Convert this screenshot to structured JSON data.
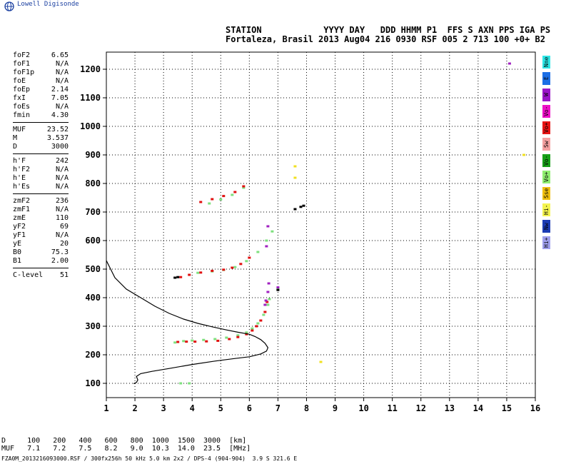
{
  "logo": {
    "text": "Lowell Digisonde",
    "icon": "globe-icon"
  },
  "header": {
    "line1": "STATION            YYYY DAY   DDD HHMM P1  FFS S AXN PPS IGA PS",
    "line2": "Fortaleza, Brasil 2013 Aug04 216 0930 RSF 005 2 713 100 +0+ B2"
  },
  "params": [
    {
      "label": "foF2",
      "value": "6.65"
    },
    {
      "label": "foF1",
      "value": "N/A"
    },
    {
      "label": "foF1p",
      "value": "N/A"
    },
    {
      "label": "foE",
      "value": "N/A"
    },
    {
      "label": "foEp",
      "value": "2.14"
    },
    {
      "label": "fxI",
      "value": "7.05"
    },
    {
      "label": "foEs",
      "value": "N/A"
    },
    {
      "label": "fmin",
      "value": "4.30"
    },
    {
      "sep": true
    },
    {
      "label": "MUF",
      "value": "23.52"
    },
    {
      "label": "M",
      "value": "3.537"
    },
    {
      "label": "D",
      "value": "3000"
    },
    {
      "sep": true
    },
    {
      "label": "h'F",
      "value": "242"
    },
    {
      "label": "h'F2",
      "value": "N/A"
    },
    {
      "label": "h'E",
      "value": "N/A"
    },
    {
      "label": "h'Es",
      "value": "N/A"
    },
    {
      "sep": true
    },
    {
      "label": "zmF2",
      "value": "236"
    },
    {
      "label": "zmF1",
      "value": "N/A"
    },
    {
      "label": "zmE",
      "value": "110"
    },
    {
      "label": "yF2",
      "value": "69"
    },
    {
      "label": "yF1",
      "value": "N/A"
    },
    {
      "label": "yE",
      "value": "20"
    },
    {
      "label": "B0",
      "value": "75.3"
    },
    {
      "label": "B1",
      "value": "2.00"
    },
    {
      "sep": true
    },
    {
      "label": "C-level",
      "value": "51"
    }
  ],
  "legend": [
    {
      "label": "Nne",
      "color": "#2ee6e6"
    },
    {
      "label": "E",
      "color": "#1c6ee6"
    },
    {
      "label": "W",
      "color": "#9a14c8"
    },
    {
      "label": "Vo-",
      "color": "#ee10c8"
    },
    {
      "label": "Vo+",
      "color": "#e81414"
    },
    {
      "label": "Sw",
      "color": "#f4a0a0"
    },
    {
      "label": "Vo-",
      "color": "#18a018"
    },
    {
      "label": "Vo+",
      "color": "#90ee70"
    },
    {
      "label": "Sse",
      "color": "#f0c010"
    },
    {
      "label": "Hi-",
      "color": "#f4f450"
    },
    {
      "label": "Nw",
      "color": "#1c3cb4"
    },
    {
      "label": "Hi+",
      "color": "#a0a0ee"
    }
  ],
  "bottom": {
    "line1": "D     100   200   400   600   800  1000  1500  3000  [km]",
    "line2": "MUF   7.1   7.2   7.5   8.2   9.0  10.3  14.0  23.5  [MHz]"
  },
  "footer": "FZA0M_2013216093000.RSF / 300fx256h 50 kHz 5.0 km 2x2 / DPS-4 (904-904)  3.9 S 321.6 E",
  "chart_data": {
    "type": "scatter",
    "title": "",
    "xlabel": "",
    "ylabel": "",
    "xlim": [
      1,
      16
    ],
    "ylim": [
      50,
      1260
    ],
    "x_ticks": [
      1,
      2,
      3,
      4,
      5,
      6,
      7,
      8,
      9,
      10,
      11,
      12,
      13,
      14,
      15,
      16
    ],
    "y_ticks": [
      100,
      200,
      300,
      400,
      500,
      600,
      700,
      800,
      900,
      1000,
      1100,
      1200
    ],
    "grid": true,
    "colors": {
      "red": "#e01010",
      "green": "#7ee07e",
      "purple": "#a020c0",
      "black": "#000000",
      "yellow": "#f0e020"
    },
    "series": [
      {
        "color": "green",
        "points": [
          [
            3.4,
            243
          ],
          [
            3.7,
            248
          ],
          [
            4.0,
            250
          ],
          [
            4.4,
            252
          ],
          [
            4.8,
            255
          ],
          [
            5.2,
            260
          ],
          [
            5.6,
            268
          ],
          [
            5.9,
            278
          ],
          [
            6.1,
            292
          ],
          [
            6.3,
            310
          ],
          [
            6.5,
            340
          ],
          [
            6.65,
            375
          ],
          [
            6.7,
            395
          ],
          [
            3.6,
            100
          ],
          [
            3.9,
            100
          ],
          [
            4.2,
            487
          ],
          [
            4.7,
            492
          ],
          [
            5.1,
            497
          ],
          [
            5.5,
            507
          ],
          [
            5.9,
            528
          ],
          [
            6.3,
            560
          ],
          [
            6.6,
            600
          ],
          [
            6.8,
            632
          ],
          [
            4.6,
            730
          ],
          [
            5.0,
            744
          ],
          [
            5.4,
            760
          ],
          [
            5.8,
            785
          ],
          [
            7.0,
            430
          ]
        ]
      },
      {
        "color": "red",
        "points": [
          [
            3.5,
            245
          ],
          [
            3.8,
            246
          ],
          [
            4.1,
            246
          ],
          [
            4.5,
            247
          ],
          [
            4.9,
            249
          ],
          [
            5.3,
            255
          ],
          [
            5.6,
            262
          ],
          [
            5.9,
            272
          ],
          [
            6.1,
            285
          ],
          [
            6.25,
            300
          ],
          [
            6.4,
            320
          ],
          [
            6.55,
            350
          ],
          [
            6.62,
            385
          ],
          [
            3.6,
            472
          ],
          [
            3.9,
            480
          ],
          [
            4.3,
            488
          ],
          [
            4.7,
            494
          ],
          [
            5.1,
            498
          ],
          [
            5.4,
            505
          ],
          [
            5.7,
            518
          ],
          [
            6.0,
            540
          ],
          [
            4.3,
            735
          ],
          [
            4.7,
            745
          ],
          [
            5.1,
            756
          ],
          [
            5.5,
            770
          ],
          [
            5.8,
            790
          ]
        ]
      },
      {
        "color": "purple",
        "points": [
          [
            6.55,
            375
          ],
          [
            6.58,
            390
          ],
          [
            6.65,
            420
          ],
          [
            6.68,
            450
          ],
          [
            6.6,
            580
          ],
          [
            6.65,
            650
          ],
          [
            15.1,
            1220
          ],
          [
            7.0,
            436
          ]
        ]
      },
      {
        "color": "black",
        "points": [
          [
            3.4,
            470
          ],
          [
            3.5,
            472
          ],
          [
            7.6,
            710
          ],
          [
            7.8,
            718
          ],
          [
            7.9,
            722
          ],
          [
            7.0,
            427
          ]
        ]
      },
      {
        "color": "yellow",
        "points": [
          [
            7.6,
            820
          ],
          [
            7.6,
            860
          ],
          [
            8.5,
            175
          ],
          [
            15.6,
            900
          ]
        ]
      }
    ],
    "profile": [
      [
        1,
        530
      ],
      [
        1.3,
        470
      ],
      [
        1.7,
        430
      ],
      [
        2.2,
        400
      ],
      [
        2.7,
        370
      ],
      [
        3.2,
        345
      ],
      [
        3.7,
        325
      ],
      [
        4.2,
        310
      ],
      [
        4.7,
        298
      ],
      [
        5.2,
        287
      ],
      [
        5.6,
        279
      ],
      [
        6.0,
        272
      ],
      [
        6.2,
        264
      ],
      [
        6.4,
        253
      ],
      [
        6.55,
        240
      ],
      [
        6.65,
        225
      ],
      [
        6.6,
        213
      ],
      [
        6.4,
        203
      ],
      [
        6.0,
        193
      ],
      [
        5.5,
        187
      ],
      [
        4.8,
        178
      ],
      [
        4.0,
        166
      ],
      [
        3.2,
        152
      ],
      [
        2.6,
        142
      ],
      [
        2.2,
        134
      ],
      [
        2.05,
        124
      ],
      [
        2.1,
        112
      ],
      [
        2.05,
        103
      ],
      [
        1.95,
        99
      ]
    ]
  }
}
